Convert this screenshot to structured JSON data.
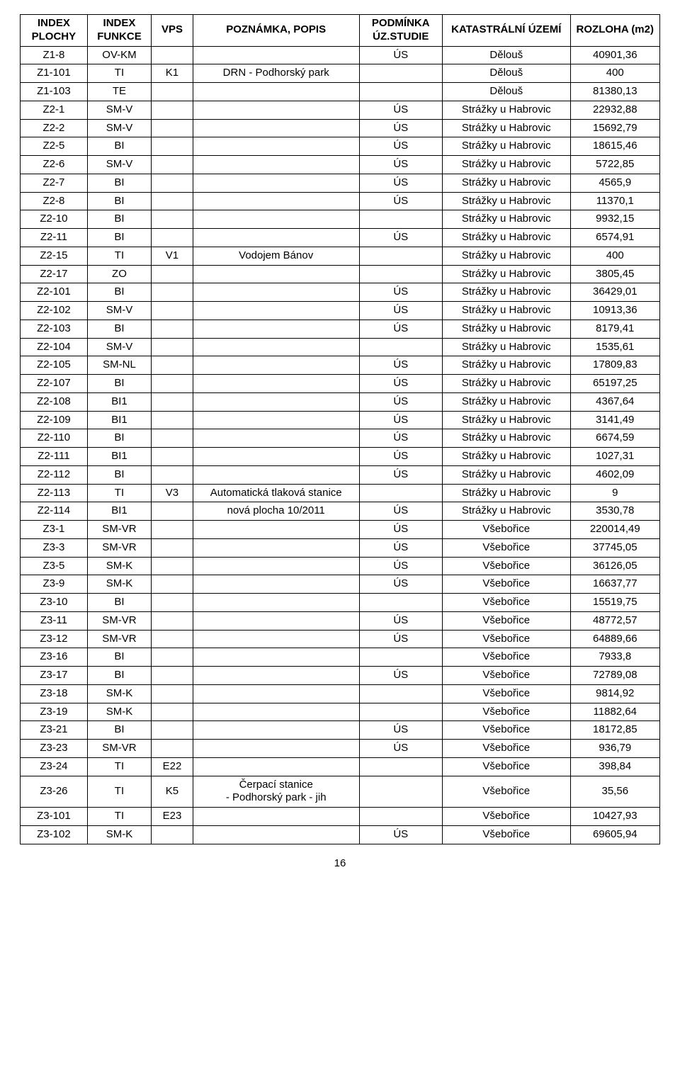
{
  "table": {
    "columns": [
      {
        "label": "INDEX PLOCHY"
      },
      {
        "label": "INDEX FUNKCE"
      },
      {
        "label": "VPS"
      },
      {
        "label": "POZNÁMKA, POPIS"
      },
      {
        "label": "PODMÍNKA ÚZ.STUDIE"
      },
      {
        "label": "KATASTRÁLNÍ ÚZEMÍ"
      },
      {
        "label": "ROZLOHA (m2)"
      }
    ],
    "rows": [
      [
        "Z1-8",
        "OV-KM",
        "",
        "",
        "ÚS",
        "Dělouš",
        "40901,36"
      ],
      [
        "Z1-101",
        "TI",
        "K1",
        "DRN - Podhorský park",
        "",
        "Dělouš",
        "400"
      ],
      [
        "Z1-103",
        "TE",
        "",
        "",
        "",
        "Dělouš",
        "81380,13"
      ],
      [
        "Z2-1",
        "SM-V",
        "",
        "",
        "ÚS",
        "Strážky u Habrovic",
        "22932,88"
      ],
      [
        "Z2-2",
        "SM-V",
        "",
        "",
        "ÚS",
        "Strážky u Habrovic",
        "15692,79"
      ],
      [
        "Z2-5",
        "BI",
        "",
        "",
        "ÚS",
        "Strážky u Habrovic",
        "18615,46"
      ],
      [
        "Z2-6",
        "SM-V",
        "",
        "",
        "ÚS",
        "Strážky u Habrovic",
        "5722,85"
      ],
      [
        "Z2-7",
        "BI",
        "",
        "",
        "ÚS",
        "Strážky u Habrovic",
        "4565,9"
      ],
      [
        "Z2-8",
        "BI",
        "",
        "",
        "ÚS",
        "Strážky u Habrovic",
        "11370,1"
      ],
      [
        "Z2-10",
        "BI",
        "",
        "",
        "",
        "Strážky u Habrovic",
        "9932,15"
      ],
      [
        "Z2-11",
        "BI",
        "",
        "",
        "ÚS",
        "Strážky u Habrovic",
        "6574,91"
      ],
      [
        "Z2-15",
        "TI",
        "V1",
        "Vodojem Bánov",
        "",
        "Strážky u Habrovic",
        "400"
      ],
      [
        "Z2-17",
        "ZO",
        "",
        "",
        "",
        "Strážky u Habrovic",
        "3805,45"
      ],
      [
        "Z2-101",
        "BI",
        "",
        "",
        "ÚS",
        "Strážky u Habrovic",
        "36429,01"
      ],
      [
        "Z2-102",
        "SM-V",
        "",
        "",
        "ÚS",
        "Strážky u Habrovic",
        "10913,36"
      ],
      [
        "Z2-103",
        "BI",
        "",
        "",
        "ÚS",
        "Strážky u Habrovic",
        "8179,41"
      ],
      [
        "Z2-104",
        "SM-V",
        "",
        "",
        "",
        "Strážky u Habrovic",
        "1535,61"
      ],
      [
        "Z2-105",
        "SM-NL",
        "",
        "",
        "ÚS",
        "Strážky u Habrovic",
        "17809,83"
      ],
      [
        "Z2-107",
        "BI",
        "",
        "",
        "ÚS",
        "Strážky u Habrovic",
        "65197,25"
      ],
      [
        "Z2-108",
        "BI1",
        "",
        "",
        "ÚS",
        "Strážky u Habrovic",
        "4367,64"
      ],
      [
        "Z2-109",
        "BI1",
        "",
        "",
        "ÚS",
        "Strážky u Habrovic",
        "3141,49"
      ],
      [
        "Z2-110",
        "BI",
        "",
        "",
        "ÚS",
        "Strážky u Habrovic",
        "6674,59"
      ],
      [
        "Z2-111",
        "BI1",
        "",
        "",
        "ÚS",
        "Strážky u Habrovic",
        "1027,31"
      ],
      [
        "Z2-112",
        "BI",
        "",
        "",
        "ÚS",
        "Strážky u Habrovic",
        "4602,09"
      ],
      [
        "Z2-113",
        "TI",
        "V3",
        "Automatická tlaková stanice",
        "",
        "Strážky u Habrovic",
        "9"
      ],
      [
        "Z2-114",
        "BI1",
        "",
        "nová plocha 10/2011",
        "ÚS",
        "Strážky u Habrovic",
        "3530,78"
      ],
      [
        "Z3-1",
        "SM-VR",
        "",
        "",
        "ÚS",
        "Všebořice",
        "220014,49"
      ],
      [
        "Z3-3",
        "SM-VR",
        "",
        "",
        "ÚS",
        "Všebořice",
        "37745,05"
      ],
      [
        "Z3-5",
        "SM-K",
        "",
        "",
        "ÚS",
        "Všebořice",
        "36126,05"
      ],
      [
        "Z3-9",
        "SM-K",
        "",
        "",
        "ÚS",
        "Všebořice",
        "16637,77"
      ],
      [
        "Z3-10",
        "BI",
        "",
        "",
        "",
        "Všebořice",
        "15519,75"
      ],
      [
        "Z3-11",
        "SM-VR",
        "",
        "",
        "ÚS",
        "Všebořice",
        "48772,57"
      ],
      [
        "Z3-12",
        "SM-VR",
        "",
        "",
        "ÚS",
        "Všebořice",
        "64889,66"
      ],
      [
        "Z3-16",
        "BI",
        "",
        "",
        "",
        "Všebořice",
        "7933,8"
      ],
      [
        "Z3-17",
        "BI",
        "",
        "",
        "ÚS",
        "Všebořice",
        "72789,08"
      ],
      [
        "Z3-18",
        "SM-K",
        "",
        "",
        "",
        "Všebořice",
        "9814,92"
      ],
      [
        "Z3-19",
        "SM-K",
        "",
        "",
        "",
        "Všebořice",
        "11882,64"
      ],
      [
        "Z3-21",
        "BI",
        "",
        "",
        "ÚS",
        "Všebořice",
        "18172,85"
      ],
      [
        "Z3-23",
        "SM-VR",
        "",
        "",
        "ÚS",
        "Všebořice",
        "936,79"
      ],
      [
        "Z3-24",
        "TI",
        "E22",
        "",
        "",
        "Všebořice",
        "398,84"
      ],
      [
        "Z3-26",
        "TI",
        "K5",
        "Čerpací stanice\n- Podhorský park - jih",
        "",
        "Všebořice",
        "35,56"
      ],
      [
        "Z3-101",
        "TI",
        "E23",
        "",
        "",
        "Všebořice",
        "10427,93"
      ],
      [
        "Z3-102",
        "SM-K",
        "",
        "",
        "ÚS",
        "Všebořice",
        "69605,94"
      ]
    ]
  },
  "page_number": "16"
}
